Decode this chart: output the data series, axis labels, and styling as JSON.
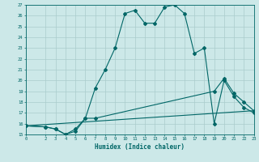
{
  "xlabel": "Humidex (Indice chaleur)",
  "bg_color": "#cce8e8",
  "grid_color": "#aacccc",
  "line_color": "#006666",
  "xlim": [
    0,
    23
  ],
  "ylim": [
    15,
    27
  ],
  "xticks": [
    0,
    2,
    3,
    4,
    5,
    6,
    7,
    8,
    9,
    10,
    11,
    12,
    13,
    14,
    15,
    16,
    17,
    18,
    19,
    20,
    21,
    22,
    23
  ],
  "yticks": [
    15,
    16,
    17,
    18,
    19,
    20,
    21,
    22,
    23,
    24,
    25,
    26,
    27
  ],
  "line1_x": [
    0,
    2,
    3,
    4,
    5,
    6,
    7,
    8,
    9,
    10,
    11,
    12,
    13,
    14,
    15,
    16,
    17,
    18,
    19,
    20,
    21,
    22,
    23
  ],
  "line1_y": [
    15.8,
    15.7,
    15.5,
    15.0,
    15.5,
    16.5,
    19.3,
    21.0,
    23.0,
    26.2,
    26.5,
    25.3,
    25.3,
    26.8,
    27.0,
    26.2,
    22.5,
    23.0,
    16.0,
    20.0,
    18.5,
    17.5,
    17.0
  ],
  "line2_x": [
    0,
    2,
    3,
    4,
    5,
    6,
    7,
    19,
    20,
    21,
    22,
    23
  ],
  "line2_y": [
    15.8,
    15.7,
    15.5,
    15.0,
    15.3,
    16.5,
    16.5,
    19.0,
    20.2,
    18.8,
    18.0,
    17.2
  ],
  "line3_x": [
    0,
    23
  ],
  "line3_y": [
    15.8,
    17.2
  ]
}
